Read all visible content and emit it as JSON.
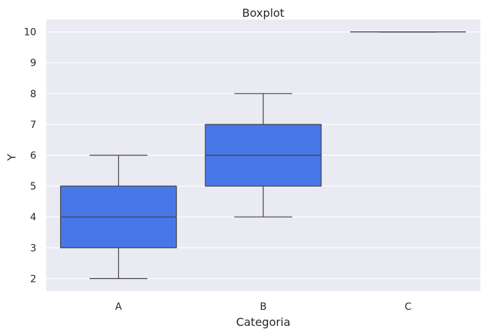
{
  "chart_data": {
    "type": "boxplot",
    "title": "Boxplot",
    "xlabel": "Categoria",
    "ylabel": "Y",
    "categories": [
      "A",
      "B",
      "C"
    ],
    "ylim": [
      1.6,
      10.4
    ],
    "yticks": [
      2,
      3,
      4,
      5,
      6,
      7,
      8,
      9,
      10
    ],
    "grid": true,
    "boxes": [
      {
        "category": "A",
        "whisker_low": 2,
        "q1": 3,
        "median": 4,
        "q3": 5,
        "whisker_high": 6
      },
      {
        "category": "B",
        "whisker_low": 4,
        "q1": 5,
        "median": 6,
        "q3": 7,
        "whisker_high": 8
      },
      {
        "category": "C",
        "whisker_low": 10,
        "q1": 10,
        "median": 10,
        "q3": 10,
        "whisker_high": 10
      }
    ]
  },
  "colors": {
    "background": "#eaeaf2",
    "grid": "#ffffff",
    "box_fill": "#4878e8",
    "box_edge": "#3d3d3d"
  }
}
